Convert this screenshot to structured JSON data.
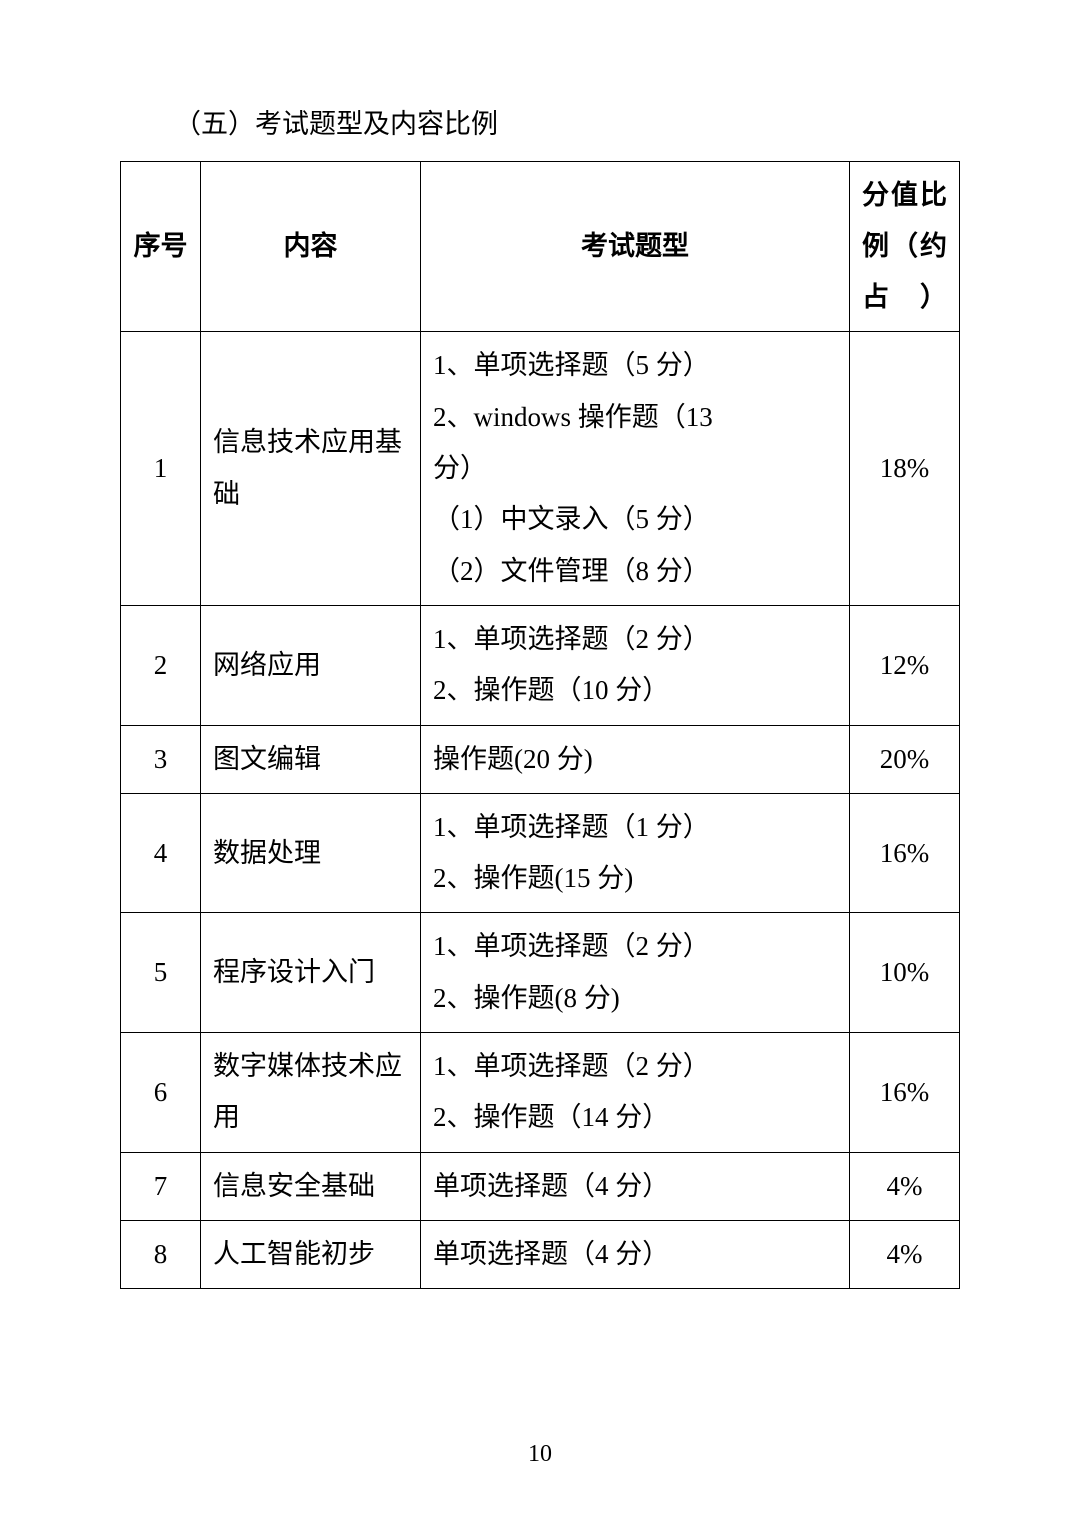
{
  "section_title": "（五）考试题型及内容比例",
  "table": {
    "headers": {
      "seq": "序号",
      "content_char1": "内",
      "content_char2": "容",
      "exam_type": "考试题型",
      "ratio_line1": "分值比",
      "ratio_line2": "例（约",
      "ratio_line3": "占）"
    },
    "rows": [
      {
        "seq": "1",
        "content": "信息技术应用基础",
        "exam_lines": [
          "1、单项选择题（5 分）",
          "2、windows 操作题（13",
          "分）",
          "（1）中文录入（5 分）",
          "（2）文件管理（8 分）"
        ],
        "ratio": "18%"
      },
      {
        "seq": "2",
        "content": "网络应用",
        "exam_lines": [
          "1、单项选择题（2 分）",
          "2、操作题（10 分）"
        ],
        "ratio": "12%"
      },
      {
        "seq": "3",
        "content": "图文编辑",
        "exam_lines": [
          "操作题(20 分)"
        ],
        "ratio": "20%"
      },
      {
        "seq": "4",
        "content": "数据处理",
        "exam_lines": [
          "1、单项选择题（1 分）",
          "2、操作题(15 分)"
        ],
        "ratio": "16%"
      },
      {
        "seq": "5",
        "content": "程序设计入门",
        "exam_lines": [
          "1、单项选择题（2 分）",
          "2、操作题(8 分)"
        ],
        "ratio": "10%"
      },
      {
        "seq": "6",
        "content": "数字媒体技术应用",
        "exam_lines": [
          "1、单项选择题（2 分）",
          "2、操作题（14 分）"
        ],
        "ratio": "16%"
      },
      {
        "seq": "7",
        "content": "信息安全基础",
        "exam_lines": [
          "单项选择题（4 分）"
        ],
        "ratio": "4%"
      },
      {
        "seq": "8",
        "content": "人工智能初步",
        "exam_lines": [
          "单项选择题（4 分）"
        ],
        "ratio": "4%"
      }
    ]
  },
  "page_number": "10"
}
